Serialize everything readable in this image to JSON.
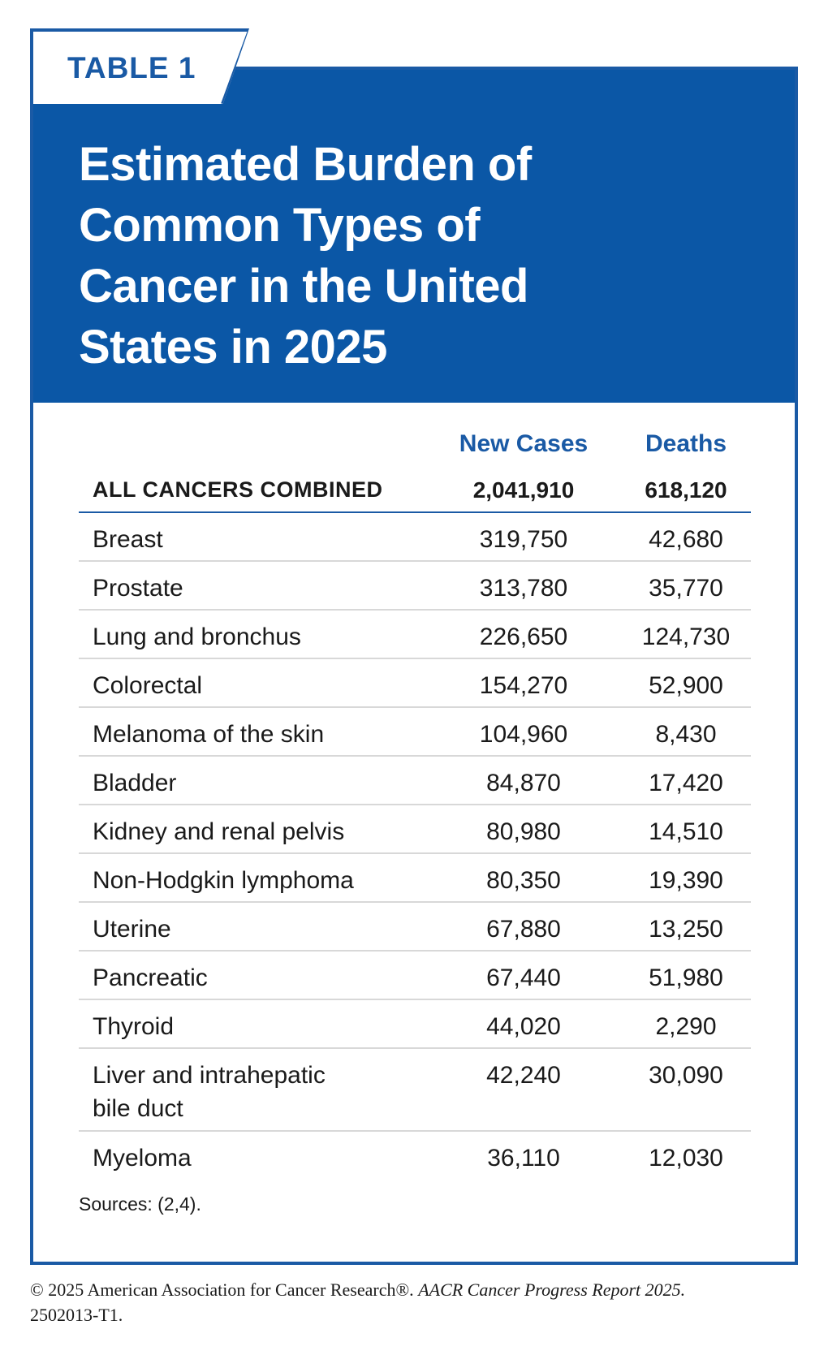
{
  "tab_label": "TABLE 1",
  "title": "Estimated Burden of\nCommon Types of\nCancer in the United\nStates in 2025",
  "columns": {
    "new_cases": "New Cases",
    "deaths": "Deaths"
  },
  "total": {
    "label": "ALL CANCERS COMBINED",
    "new_cases": "2,041,910",
    "deaths": "618,120"
  },
  "rows": [
    {
      "name": "Breast",
      "new_cases": "319,750",
      "deaths": "42,680"
    },
    {
      "name": "Prostate",
      "new_cases": "313,780",
      "deaths": "35,770"
    },
    {
      "name": "Lung and bronchus",
      "new_cases": "226,650",
      "deaths": "124,730"
    },
    {
      "name": "Colorectal",
      "new_cases": "154,270",
      "deaths": "52,900"
    },
    {
      "name": "Melanoma of the skin",
      "new_cases": "104,960",
      "deaths": "8,430"
    },
    {
      "name": "Bladder",
      "new_cases": "84,870",
      "deaths": "17,420"
    },
    {
      "name": "Kidney and renal pelvis",
      "new_cases": "80,980",
      "deaths": "14,510"
    },
    {
      "name": "Non-Hodgkin lymphoma",
      "new_cases": "80,350",
      "deaths": "19,390"
    },
    {
      "name": "Uterine",
      "new_cases": "67,880",
      "deaths": "13,250"
    },
    {
      "name": "Pancreatic",
      "new_cases": "67,440",
      "deaths": "51,980"
    },
    {
      "name": "Thyroid",
      "new_cases": "44,020",
      "deaths": "2,290"
    },
    {
      "name": "Liver and intrahepatic\nbile duct",
      "new_cases": "42,240",
      "deaths": "30,090"
    },
    {
      "name": "Myeloma",
      "new_cases": "36,110",
      "deaths": "12,030"
    }
  ],
  "sources": "Sources: (2,4).",
  "copyright": {
    "prefix": "© 2025 American Association for Cancer Research®. ",
    "report": "AACR Cancer Progress Report 2025.",
    "code": "2502013-T1."
  },
  "colors": {
    "brand_blue": "#0b57a6",
    "accent_blue": "#1a5aa5"
  }
}
